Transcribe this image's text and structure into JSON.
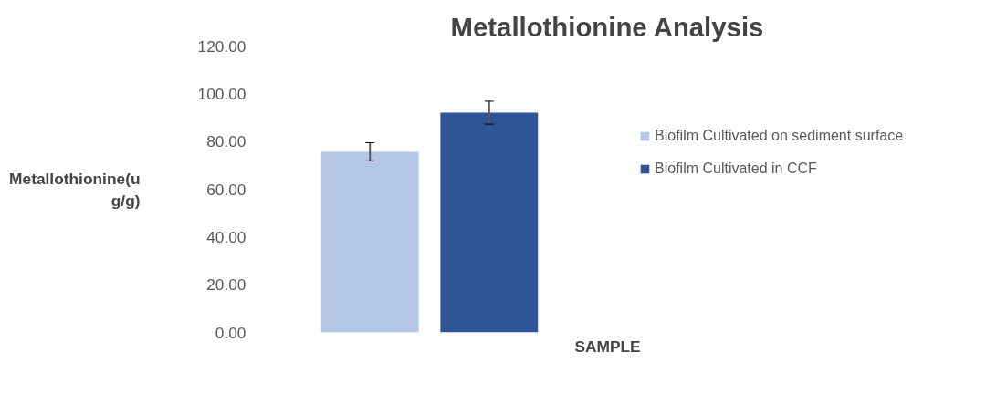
{
  "chart_data": {
    "type": "bar",
    "title": "Metallothionine Analysis",
    "xlabel": "SAMPLE",
    "ylabel": "Metallothionine(ug/g)",
    "categories": [
      null
    ],
    "series": [
      {
        "name": "Biofilm Cultivated on sediment surface",
        "color": "#b4c7e7",
        "values": [
          75.7
        ],
        "errors": [
          3.8
        ]
      },
      {
        "name": "Biofilm Cultivated in CCF",
        "color": "#2f5597",
        "values": [
          92.1
        ],
        "errors": [
          4.8
        ]
      }
    ],
    "ylim": [
      0,
      120
    ],
    "yticks": [
      {
        "value": 0,
        "label": "0.00"
      },
      {
        "value": 20,
        "label": "20.00"
      },
      {
        "value": 40,
        "label": "40.00"
      },
      {
        "value": 60,
        "label": "60.00"
      },
      {
        "value": 80,
        "label": "80.00"
      },
      {
        "value": 100,
        "label": "100.00"
      },
      {
        "value": 120,
        "label": "120.00"
      }
    ],
    "grid": false,
    "legend": "right"
  }
}
